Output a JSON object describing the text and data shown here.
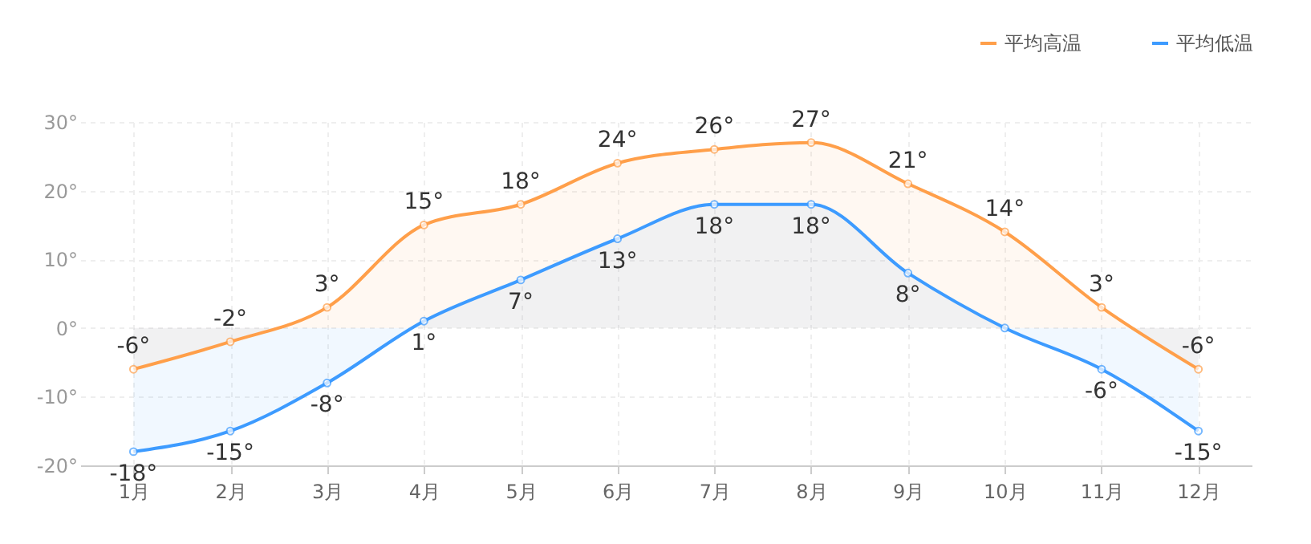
{
  "chart_data": {
    "type": "area",
    "categories": [
      "1月",
      "2月",
      "3月",
      "4月",
      "5月",
      "6月",
      "7月",
      "8月",
      "9月",
      "10月",
      "11月",
      "12月"
    ],
    "series": [
      {
        "name": "平均高温",
        "color": "#ff9f4a",
        "values": [
          -6,
          -2,
          3,
          15,
          18,
          24,
          26,
          27,
          21,
          14,
          3,
          -6
        ],
        "value_labels": [
          "-6°",
          "-2°",
          "3°",
          "15°",
          "18°",
          "24°",
          "26°",
          "27°",
          "21°",
          "14°",
          "3°",
          "-6°"
        ]
      },
      {
        "name": "平均低温",
        "color": "#3d9bff",
        "values": [
          -18,
          -15,
          -8,
          1,
          7,
          13,
          18,
          18,
          8,
          0,
          -6,
          -15
        ],
        "value_labels": [
          "-18°",
          "-15°",
          "-8°",
          "1°",
          "7°",
          "13°",
          "18°",
          "18°",
          "8°",
          null,
          "-6°",
          "-15°"
        ]
      }
    ],
    "ylim": [
      -20,
      30
    ],
    "yticks": [
      {
        "value": -20,
        "label": "-20°"
      },
      {
        "value": -10,
        "label": "-10°"
      },
      {
        "value": 0,
        "label": "0°"
      },
      {
        "value": 10,
        "label": "10°"
      },
      {
        "value": 20,
        "label": "20°"
      },
      {
        "value": 30,
        "label": "30°"
      }
    ],
    "grid": true,
    "legend": "top right",
    "marker": "circle",
    "line_style": "solid"
  }
}
